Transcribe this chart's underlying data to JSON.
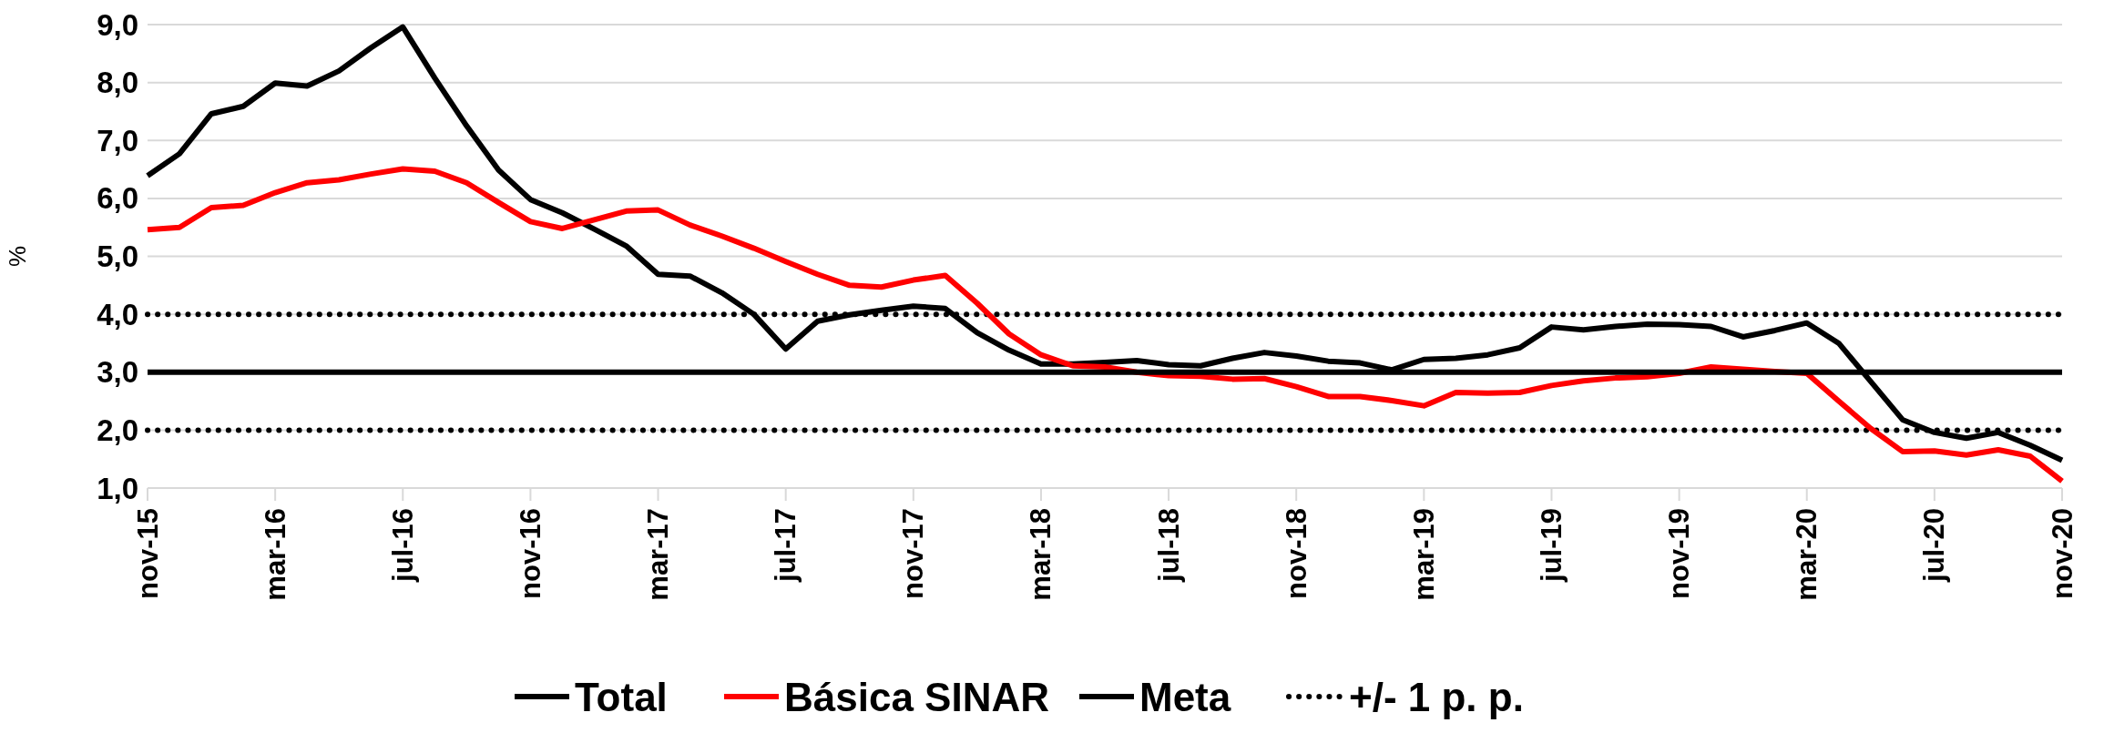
{
  "chart_data": {
    "type": "line",
    "ylabel": "%",
    "categories": [
      "nov-15",
      null,
      null,
      null,
      "mar-16",
      null,
      null,
      null,
      "jul-16",
      null,
      null,
      null,
      "nov-16",
      null,
      null,
      null,
      "mar-17",
      null,
      null,
      null,
      "jul-17",
      null,
      null,
      null,
      "nov-17",
      null,
      null,
      null,
      "mar-18",
      null,
      null,
      null,
      "jul-18",
      null,
      null,
      null,
      "nov-18",
      null,
      null,
      null,
      "mar-19",
      null,
      null,
      null,
      "jul-19",
      null,
      null,
      null,
      "nov-19",
      null,
      null,
      null,
      "mar-20",
      null,
      null,
      null,
      "jul-20",
      null,
      null,
      null,
      "nov-20"
    ],
    "series": [
      {
        "name": "Total",
        "color": "#000000",
        "values": [
          6.39,
          6.77,
          7.46,
          7.59,
          7.99,
          7.94,
          8.2,
          8.6,
          8.96,
          8.08,
          7.25,
          6.49,
          5.98,
          5.75,
          5.47,
          5.18,
          4.69,
          4.66,
          4.37,
          4.0,
          3.4,
          3.88,
          3.99,
          4.07,
          4.14,
          4.1,
          3.68,
          3.38,
          3.14,
          3.14,
          3.17,
          3.2,
          3.13,
          3.11,
          3.24,
          3.34,
          3.28,
          3.19,
          3.16,
          3.04,
          3.22,
          3.24,
          3.3,
          3.42,
          3.78,
          3.73,
          3.79,
          3.83,
          3.82,
          3.79,
          3.61,
          3.72,
          3.85,
          3.5,
          2.84,
          2.18,
          1.96,
          1.86,
          1.96,
          1.74,
          1.48
        ]
      },
      {
        "name": "Básica SINAR",
        "color": "#ff0000",
        "values": [
          5.46,
          5.5,
          5.84,
          5.88,
          6.1,
          6.27,
          6.32,
          6.42,
          6.51,
          6.47,
          6.27,
          5.93,
          5.6,
          5.48,
          5.63,
          5.78,
          5.8,
          5.54,
          5.35,
          5.14,
          4.91,
          4.69,
          4.5,
          4.47,
          4.59,
          4.67,
          4.19,
          3.66,
          3.3,
          3.11,
          3.09,
          3.0,
          2.94,
          2.93,
          2.88,
          2.89,
          2.75,
          2.58,
          2.58,
          2.51,
          2.42,
          2.65,
          2.64,
          2.65,
          2.77,
          2.85,
          2.9,
          2.92,
          2.98,
          3.09,
          3.05,
          3.01,
          2.98,
          2.5,
          2.03,
          1.63,
          1.64,
          1.57,
          1.66,
          1.55,
          1.12
        ]
      },
      {
        "name": "Meta",
        "color": "#000000",
        "values": [
          3,
          3,
          3,
          3,
          3,
          3,
          3,
          3,
          3,
          3,
          3,
          3,
          3,
          3,
          3,
          3,
          3,
          3,
          3,
          3,
          3,
          3,
          3,
          3,
          3,
          3,
          3,
          3,
          3,
          3,
          3,
          3,
          3,
          3,
          3,
          3,
          3,
          3,
          3,
          3,
          3,
          3,
          3,
          3,
          3,
          3,
          3,
          3,
          3,
          3,
          3,
          3,
          3,
          3,
          3,
          3,
          3,
          3,
          3,
          3,
          3
        ]
      }
    ],
    "ref_lines": [
      {
        "axis": "y",
        "value": 4,
        "label": "+/- 1 p. p.",
        "color": "#000000",
        "line_style": "dotted"
      },
      {
        "axis": "y",
        "value": 2,
        "color": "#000000",
        "line_style": "dotted"
      }
    ],
    "ylim": [
      1,
      9
    ],
    "yticks": [
      {
        "value": 1,
        "label": "1,0"
      },
      {
        "value": 2,
        "label": "2,0"
      },
      {
        "value": 3,
        "label": "3,0"
      },
      {
        "value": 4,
        "label": "4,0"
      },
      {
        "value": 5,
        "label": "5,0"
      },
      {
        "value": 6,
        "label": "6,0"
      },
      {
        "value": 7,
        "label": "7,0"
      },
      {
        "value": 8,
        "label": "8,0"
      },
      {
        "value": 9,
        "label": "9,0"
      }
    ],
    "grid": "y",
    "legend": "bottom",
    "line_style": "solid",
    "marker": "none"
  }
}
